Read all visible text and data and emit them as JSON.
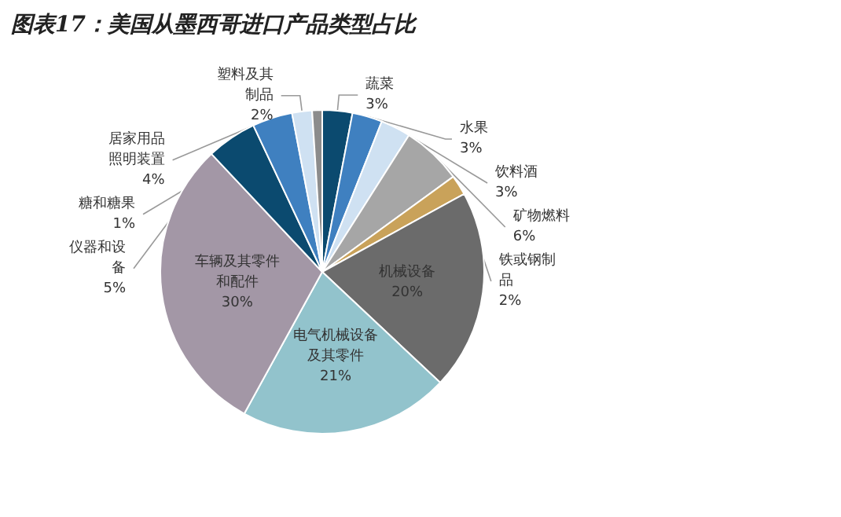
{
  "chart_data": {
    "type": "pie",
    "title": "图表17：美国从墨西哥进口产品类型占比",
    "categories": [
      "蔬菜",
      "水果",
      "饮料酒",
      "矿物燃料",
      "铁或钢制品",
      "机械设备",
      "电气机械设备及其零件",
      "车辆及其零件和配件",
      "仪器和设备",
      "居家用品照明装置",
      "塑料及其制品",
      "糖和糖果"
    ],
    "values": [
      3,
      3,
      3,
      6,
      2,
      20,
      21,
      30,
      5,
      4,
      2,
      1
    ],
    "value_labels": [
      "3%",
      "3%",
      "3%",
      "6%",
      "2%",
      "20%",
      "21%",
      "30%",
      "5%",
      "4%",
      "2%",
      "1%"
    ],
    "colors": [
      "#0b4a6f",
      "#3f80c0",
      "#cfe1f2",
      "#a6a6a6",
      "#c9a25a",
      "#6b6b6b",
      "#92c3cc",
      "#a397a6",
      "#0b4a6f",
      "#3f80c0",
      "#cfe1f2",
      "#8c8c8c"
    ],
    "legend": false
  }
}
